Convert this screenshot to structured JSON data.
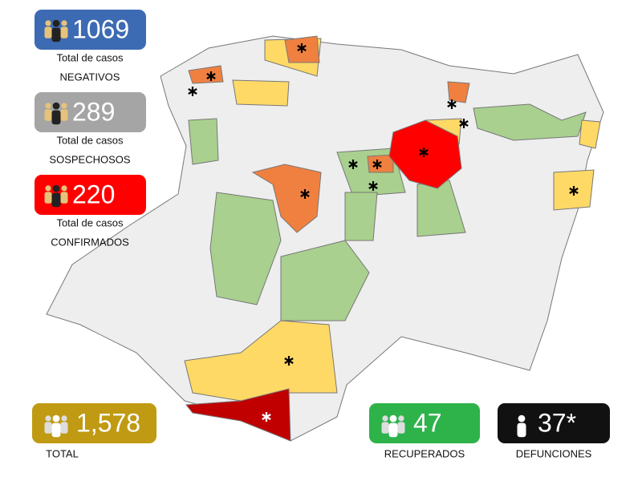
{
  "stats": [
    {
      "value": "1069",
      "line1": "Total de casos",
      "line2": "NEGATIVOS",
      "color": "#3d6bb3"
    },
    {
      "value": "289",
      "line1": "Total de casos",
      "line2": "SOSPECHOSOS",
      "color": "#a5a5a5"
    },
    {
      "value": "220",
      "line1": "Total de casos",
      "line2": "CONFIRMADOS",
      "color": "#ff0000"
    }
  ],
  "totals": [
    {
      "value": "1,578",
      "label": "TOTAL",
      "color": "#c09a12"
    },
    {
      "value": "47",
      "label": "RECUPERADOS",
      "color": "#2db34a"
    },
    {
      "value": "37*",
      "label": "DEFUNCIONES",
      "color": "#111111"
    }
  ]
}
